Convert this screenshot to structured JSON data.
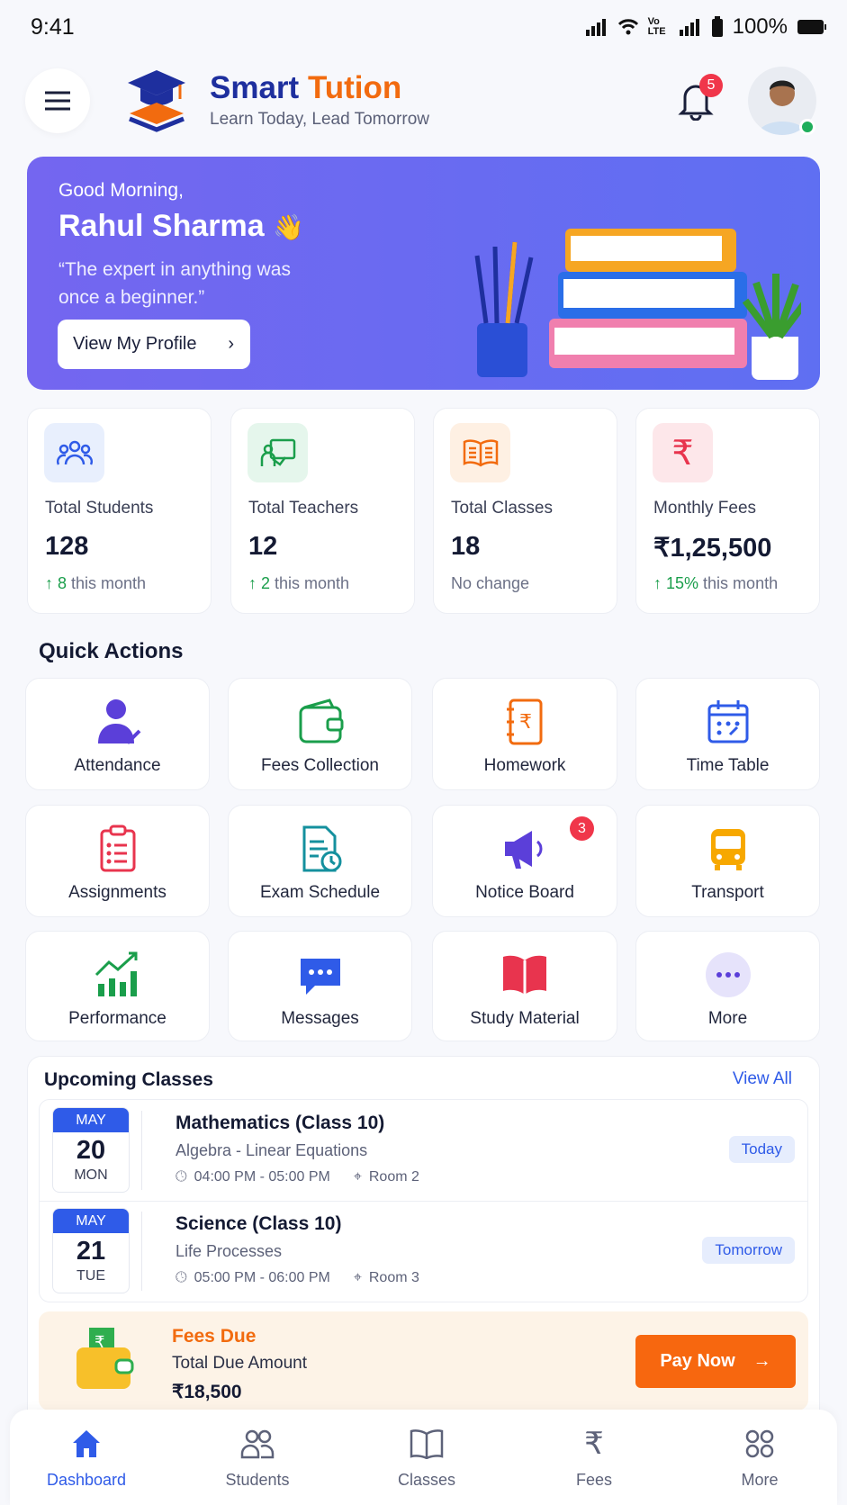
{
  "status_bar": {
    "time": "9:41",
    "battery": "100%",
    "network": "Vo LTE"
  },
  "header": {
    "brand_part1": "Smart",
    "brand_part2": "Tution",
    "tagline": "Learn Today, Lead Tomorrow",
    "notification_count": "5"
  },
  "banner": {
    "greeting": "Good Morning,",
    "name": "Rahul Sharma",
    "emoji": "👋",
    "quote": "“The expert in anything was once a beginner.”",
    "button": "View My Profile"
  },
  "stats": [
    {
      "label": "Total Students",
      "value": "128",
      "change": "8",
      "suffix": " this month",
      "color": "#2f5be8",
      "bg": "#e8effd",
      "icon": "users-icon"
    },
    {
      "label": "Total Teachers",
      "value": "12",
      "change": "2",
      "suffix": " this month",
      "color": "#1a9e4b",
      "bg": "#e5f6ec",
      "icon": "teacher-board-icon"
    },
    {
      "label": "Total Classes",
      "value": "18",
      "change": "",
      "suffix": "No change",
      "color": "#f26b0f",
      "bg": "#fef0e3",
      "icon": "book-open-icon"
    },
    {
      "label": "Monthly Fees",
      "value": "₹1,25,500",
      "change": "15%",
      "suffix": " this month",
      "color": "#e8344e",
      "bg": "#fde7ea",
      "icon": "rupee-icon"
    }
  ],
  "quick_actions": {
    "title": "Quick Actions",
    "items": [
      {
        "label": "Attendance"
      },
      {
        "label": "Fees Collection"
      },
      {
        "label": "Homework"
      },
      {
        "label": "Time Table"
      },
      {
        "label": "Assignments"
      },
      {
        "label": "Exam Schedule"
      },
      {
        "label": "Notice Board",
        "badge": "3"
      },
      {
        "label": "Transport"
      },
      {
        "label": "Performance"
      },
      {
        "label": "Messages"
      },
      {
        "label": "Study Material"
      },
      {
        "label": "More"
      }
    ]
  },
  "upcoming": {
    "title": "Upcoming Classes",
    "view_all": "View All",
    "classes": [
      {
        "month": "MAY",
        "day": "20",
        "weekday": "MON",
        "subject": "Mathematics (Class 10)",
        "topic": "Algebra - Linear Equations",
        "time": "04:00 PM - 05:00 PM",
        "room": "Room 2",
        "tag": "Today"
      },
      {
        "month": "MAY",
        "day": "21",
        "weekday": "TUE",
        "subject": "Science (Class 10)",
        "topic": "Life Processes",
        "time": "05:00 PM - 06:00 PM",
        "room": "Room 3",
        "tag": "Tomorrow"
      }
    ]
  },
  "fees_due": {
    "title": "Fees Due",
    "label": "Total Due Amount",
    "amount": "₹18,500",
    "button": "Pay Now"
  },
  "bottom_nav": [
    {
      "label": "Dashboard",
      "active": true
    },
    {
      "label": "Students"
    },
    {
      "label": "Classes"
    },
    {
      "label": "Fees"
    },
    {
      "label": "More"
    }
  ]
}
